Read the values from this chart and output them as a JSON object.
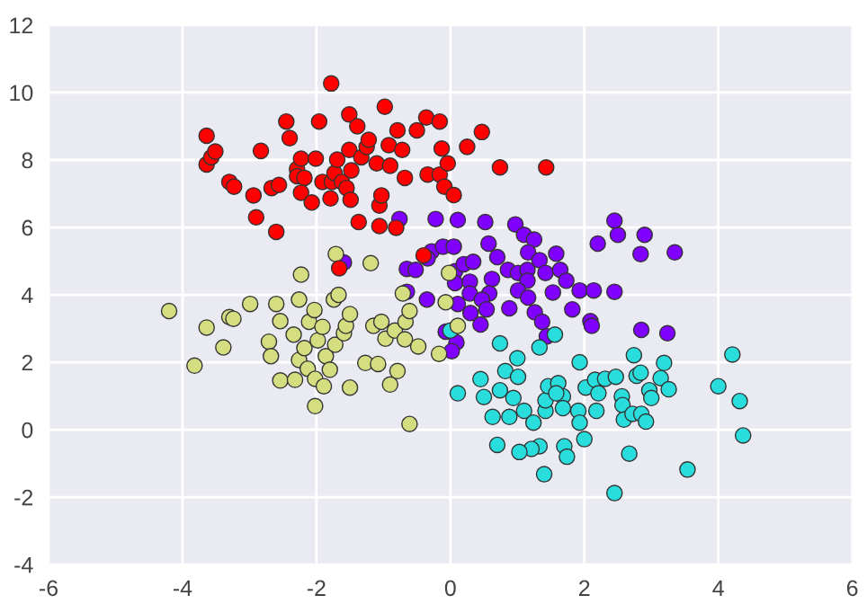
{
  "chart_data": {
    "type": "scatter",
    "marker": "circle",
    "grid": true,
    "legend": false,
    "xlim": [
      -6,
      6
    ],
    "ylim": [
      -4,
      12
    ],
    "xticks": [
      -6,
      -4,
      -2,
      0,
      2,
      4,
      6
    ],
    "yticks": [
      -4,
      -2,
      0,
      2,
      4,
      6,
      8,
      10,
      12
    ],
    "series": [
      {
        "color": "#8000ff",
        "x": [
          -0.76,
          -0.22,
          0.11,
          0.52,
          0.97,
          2.45,
          2.5,
          2.9,
          2.2,
          3.35,
          2.84,
          0.57,
          1.1,
          1.25,
          1.16,
          1.58,
          0.7,
          -0.28,
          -0.11,
          0.05,
          -0.34,
          -0.65,
          -0.52,
          0.07,
          0.2,
          0.34,
          0.86,
          1.01,
          1.15,
          1.33,
          1.42,
          1.64,
          1.73,
          1.15,
          0.62,
          0.07,
          0.29,
          -0.65,
          -0.35,
          0.29,
          0.58,
          0.47,
          1.01,
          1.16,
          1.53,
          1.93,
          2.14,
          2.45,
          0.11,
          0.54,
          0.88,
          0.3,
          1.26,
          1.37,
          1.82,
          0.45,
          2.09,
          2.11,
          2.85,
          3.24,
          1.44,
          -0.07,
          0.09,
          0.02,
          -1.59
        ],
        "values": [
          6.25,
          6.25,
          6.22,
          6.16,
          6.09,
          6.2,
          5.78,
          5.78,
          5.52,
          5.26,
          5.21,
          5.52,
          5.78,
          5.64,
          5.26,
          5.22,
          5.12,
          5.29,
          5.43,
          5.43,
          5.08,
          4.77,
          4.74,
          4.7,
          4.91,
          4.98,
          4.74,
          4.65,
          4.74,
          5.03,
          4.65,
          4.74,
          4.42,
          4.42,
          4.47,
          4.35,
          4.39,
          4.09,
          3.86,
          4.04,
          4.04,
          3.86,
          4.13,
          3.92,
          4.07,
          4.13,
          4.13,
          4.09,
          3.73,
          3.57,
          3.6,
          3.46,
          3.48,
          3.2,
          3.57,
          3.12,
          3.22,
          3.08,
          2.96,
          2.86,
          2.77,
          2.91,
          2.59,
          2.33,
          4.96
        ]
      },
      {
        "color": "#2adddd",
        "x": [
          0.74,
          1.0,
          1.33,
          1.56,
          0.11,
          0.45,
          0.5,
          0.63,
          0.74,
          0.82,
          0.94,
          0.88,
          1.01,
          1.1,
          1.24,
          1.42,
          1.42,
          1.46,
          1.61,
          1.68,
          1.68,
          1.58,
          1.93,
          1.91,
          1.93,
          2.02,
          2.16,
          2.21,
          2.18,
          2.31,
          2.47,
          2.56,
          2.57,
          2.59,
          2.72,
          2.74,
          2.78,
          2.84,
          2.85,
          2.92,
          2.97,
          3.0,
          3.14,
          3.19,
          3.26,
          4.0,
          4.21,
          4.32,
          4.37,
          3.54,
          2.45,
          2.67,
          2.0,
          1.7,
          1.74,
          1.4,
          1.33,
          1.21,
          1.03,
          0.7,
          0.0
        ],
        "values": [
          2.56,
          2.12,
          2.44,
          2.82,
          1.08,
          1.5,
          0.97,
          0.38,
          1.17,
          1.74,
          0.94,
          0.38,
          1.57,
          0.56,
          0.21,
          0.56,
          0.87,
          1.29,
          1.38,
          0.99,
          0.64,
          1.08,
          2.0,
          0.56,
          0.21,
          1.25,
          1.48,
          1.08,
          0.56,
          1.51,
          1.57,
          0.99,
          0.73,
          0.3,
          0.47,
          2.21,
          1.6,
          1.69,
          0.47,
          0.24,
          1.17,
          0.94,
          1.53,
          1.98,
          1.2,
          1.29,
          2.23,
          0.85,
          -0.17,
          -1.18,
          -1.88,
          -0.71,
          -0.28,
          -0.49,
          -0.8,
          -1.32,
          -0.49,
          -0.57,
          -0.66,
          -0.45,
          2.94
        ]
      },
      {
        "color": "#d4dd80",
        "x": [
          -4.2,
          -3.82,
          -3.64,
          -3.39,
          -3.3,
          -3.24,
          -2.99,
          -2.71,
          -2.68,
          -2.6,
          -2.54,
          -2.54,
          -2.34,
          -2.32,
          -2.26,
          -2.23,
          -2.26,
          -2.18,
          -2.13,
          -2.11,
          -2.03,
          -1.98,
          -2.02,
          -2.02,
          -1.91,
          -1.89,
          -1.86,
          -1.8,
          -1.74,
          -1.72,
          -1.71,
          -1.67,
          -1.59,
          -1.56,
          -1.5,
          -1.5,
          -1.27,
          -1.19,
          -1.15,
          -1.08,
          -1.03,
          -0.97,
          -0.9,
          -0.83,
          -0.79,
          -0.68,
          -0.67,
          -0.61,
          -0.61,
          -0.48,
          -0.17,
          -0.07,
          0.11,
          -0.02,
          -0.71
        ],
        "values": [
          3.52,
          1.9,
          3.03,
          2.44,
          3.34,
          3.29,
          3.73,
          2.61,
          2.18,
          3.73,
          3.22,
          1.46,
          2.82,
          1.48,
          3.86,
          4.6,
          2.07,
          2.42,
          1.81,
          3.2,
          3.55,
          2.65,
          1.51,
          0.7,
          3.05,
          1.29,
          2.18,
          1.78,
          3.86,
          2.52,
          5.21,
          4.0,
          2.86,
          3.08,
          3.43,
          1.25,
          1.98,
          4.94,
          3.08,
          1.95,
          3.2,
          2.7,
          1.34,
          2.94,
          1.74,
          2.68,
          3.2,
          3.52,
          0.17,
          2.47,
          2.25,
          3.78,
          3.08,
          4.65,
          4.04
        ]
      },
      {
        "color": "#ff0000",
        "x": [
          -1.78,
          -3.64,
          -3.64,
          -3.57,
          -3.51,
          -3.3,
          -3.23,
          -2.94,
          -2.9,
          -2.83,
          -2.67,
          -2.6,
          -2.56,
          -2.45,
          -2.4,
          -2.29,
          -2.29,
          -2.23,
          -2.18,
          -2.23,
          -2.07,
          -2.01,
          -1.96,
          -1.91,
          -1.79,
          -1.77,
          -1.73,
          -1.69,
          -1.62,
          -1.55,
          -1.51,
          -1.49,
          -1.48,
          -1.51,
          -1.39,
          -1.37,
          -1.33,
          -1.25,
          -1.22,
          -1.1,
          -1.06,
          -1.06,
          -1.03,
          -0.98,
          -0.92,
          -0.9,
          -0.81,
          -0.79,
          -0.72,
          -0.68,
          -0.5,
          -0.36,
          -0.34,
          -0.16,
          -0.16,
          -0.13,
          -0.09,
          -0.04,
          0.05,
          0.25,
          0.47,
          0.74,
          1.43,
          -0.4,
          -1.66
        ],
        "values": [
          10.27,
          8.72,
          7.87,
          8.08,
          8.25,
          7.35,
          7.21,
          6.95,
          6.3,
          8.27,
          7.17,
          5.87,
          7.26,
          9.14,
          8.65,
          7.73,
          7.52,
          8.04,
          7.47,
          7.03,
          6.74,
          8.04,
          9.14,
          7.35,
          6.86,
          7.35,
          7.61,
          8.01,
          7.35,
          7.17,
          9.35,
          6.82,
          7.69,
          8.3,
          9.0,
          6.16,
          8.08,
          8.39,
          8.6,
          7.9,
          6.04,
          6.65,
          6.95,
          9.58,
          8.44,
          7.83,
          5.99,
          8.88,
          8.3,
          7.47,
          8.88,
          9.26,
          7.57,
          9.14,
          7.57,
          8.34,
          7.21,
          7.9,
          6.96,
          8.39,
          8.83,
          7.78,
          7.78,
          5.17,
          4.79
        ]
      }
    ]
  }
}
